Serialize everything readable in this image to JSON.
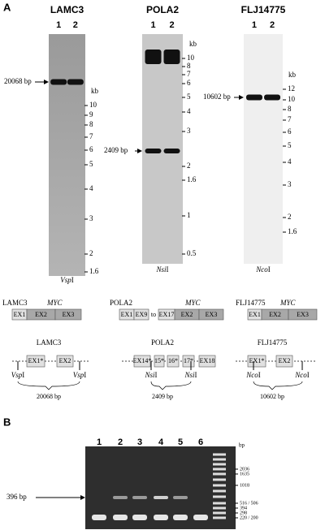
{
  "panel_a": {
    "label": "A",
    "blots": [
      {
        "title": "LAMC3",
        "lanes": [
          "1",
          "2"
        ],
        "band_label": "20068 bp",
        "kb": "kb",
        "markers": [
          10,
          9,
          8,
          7,
          6,
          5,
          4,
          3,
          2,
          1.6
        ],
        "enzyme": {
          "italic": "Vsp",
          "roman": "I"
        }
      },
      {
        "title": "POLA2",
        "lanes": [
          "1",
          "2"
        ],
        "band_label": "2409 bp",
        "kb": "kb",
        "markers": [
          10,
          8,
          7,
          6,
          5,
          4,
          3,
          2,
          1.6,
          1,
          0.5
        ],
        "enzyme": {
          "italic": "Nsi",
          "roman": "I"
        }
      },
      {
        "title": "FLJ14775",
        "lanes": [
          "1",
          "2"
        ],
        "band_label": "10602 bp",
        "kb": "kb",
        "markers": [
          12,
          10,
          8,
          7,
          6,
          5,
          4,
          3,
          2,
          1.6
        ],
        "enzyme": {
          "italic": "Nco",
          "roman": "I"
        }
      }
    ],
    "gene_maps": [
      {
        "gene": "LAMC3",
        "fusion": "MYC",
        "exons": [
          "EX1",
          "EX2",
          "EX3"
        ]
      },
      {
        "gene": "POLA2",
        "fusion": "MYC",
        "exons": [
          "EX1",
          "EX9",
          "to",
          "EX17",
          "EX2",
          "EX3"
        ]
      },
      {
        "gene": "FLJ14775",
        "fusion": "MYC",
        "exons": [
          "EX1",
          "EX2",
          "EX3"
        ]
      }
    ],
    "digests": [
      {
        "title": "LAMC3",
        "exons": [
          "EX1*",
          "EX2"
        ],
        "sites": [
          {
            "italic": "Vsp",
            "roman": "I"
          },
          {
            "italic": "Vsp",
            "roman": "I"
          }
        ],
        "size": "20068 bp"
      },
      {
        "title": "POLA2",
        "exons": [
          "EX14*",
          "15*",
          "16*",
          "17*",
          "EX18"
        ],
        "sites": [
          {
            "italic": "Nsi",
            "roman": "I"
          },
          {
            "italic": "Nsi",
            "roman": "I"
          }
        ],
        "size": "2409 bp"
      },
      {
        "title": "FLJ14775",
        "exons": [
          "EX1*",
          "EX2"
        ],
        "sites": [
          {
            "italic": "Nco",
            "roman": "I"
          },
          {
            "italic": "Nco",
            "roman": "I"
          }
        ],
        "size": "10602 bp"
      }
    ]
  },
  "panel_b": {
    "label": "B",
    "lanes": [
      "1",
      "2",
      "3",
      "4",
      "5",
      "6"
    ],
    "unit": "bp",
    "markers": [
      "2036",
      "1635",
      "1018",
      "516 / 506",
      "394",
      "298",
      "220 / 200"
    ],
    "band_label": "396 bp"
  }
}
